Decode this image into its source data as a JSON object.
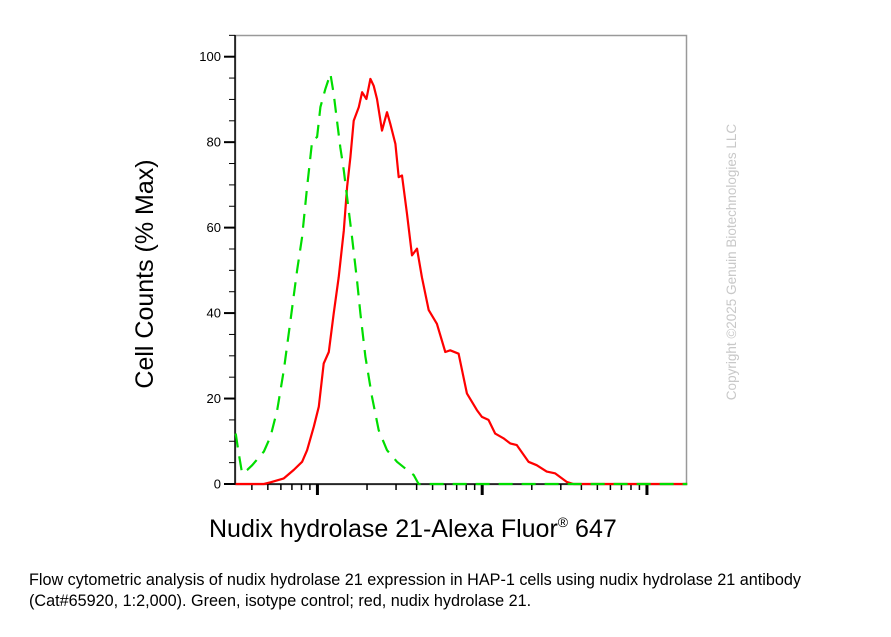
{
  "chart_data": {
    "type": "line",
    "title": "",
    "xlabel_parts": {
      "main": "Nudix hydrolase 21-Alexa Fluor",
      "sup": "®",
      "tail": " 647"
    },
    "ylabel": "Cell Counts (% Max)",
    "x_scale": "log",
    "xlim": [
      316,
      175000
    ],
    "x_major_ticks": [
      1000,
      10000,
      100000
    ],
    "ylim": [
      0,
      105
    ],
    "y_ticks": [
      0,
      20,
      40,
      60,
      80,
      100
    ],
    "y_tick_labels": [
      "0",
      "20",
      "40",
      "60",
      "80",
      "100"
    ],
    "grid": false,
    "legend": "none",
    "series": [
      {
        "color": "#ff0000",
        "style": "solid",
        "x": [
          319,
          473,
          519,
          625,
          719,
          807,
          866,
          950,
          1019,
          1092,
          1172,
          1256,
          1346,
          1445,
          1513,
          1585,
          1660,
          1782,
          1866,
          1982,
          2095,
          2194,
          2300,
          2466,
          2644,
          2769,
          2972,
          3112,
          3259,
          3494,
          3749,
          4018,
          4306,
          4732,
          5309,
          5970,
          6397,
          7194,
          8076,
          9290,
          9954,
          10920,
          11990,
          13460,
          14780,
          16220,
          19090,
          21430,
          24640,
          27670,
          32570,
          35780,
          175400
        ],
        "y": [
          0,
          0,
          0.4,
          1.3,
          3.3,
          5.2,
          7.9,
          13.4,
          18.1,
          28.2,
          30.9,
          39.9,
          48.4,
          59.3,
          69.5,
          76.5,
          85.0,
          88.2,
          91.7,
          90.1,
          94.8,
          93.2,
          90.1,
          82.7,
          87.0,
          84.3,
          79.6,
          71.8,
          72.2,
          63.2,
          53.5,
          55.1,
          48.4,
          40.7,
          37.5,
          30.9,
          31.3,
          30.5,
          21.2,
          17.3,
          15.7,
          15.0,
          11.8,
          10.7,
          9.5,
          9.1,
          5.2,
          4.4,
          2.9,
          2.5,
          0.5,
          0,
          0
        ]
      },
      {
        "color": "#00dd00",
        "style": "dashed",
        "x": [
          319,
          333,
          349,
          375,
          402,
          473,
          519,
          570,
          625,
          686,
          753,
          807,
          866,
          929,
          995,
          1042,
          1117,
          1199,
          1256,
          1315,
          1377,
          1445,
          1513,
          1622,
          1739,
          1822,
          1954,
          2143,
          2353,
          2644,
          3041,
          3494,
          3837,
          4111,
          175400
        ],
        "y": [
          11.8,
          7.2,
          2.5,
          3.3,
          4.4,
          7.6,
          11.1,
          17.3,
          26.6,
          38.3,
          50.0,
          57.8,
          69.5,
          80.4,
          81.2,
          88.2,
          92.4,
          96.0,
          91.3,
          85.0,
          78.8,
          73.4,
          67.1,
          57.8,
          47.7,
          39.9,
          29.8,
          20.4,
          12.6,
          7.9,
          5.2,
          3.3,
          2.1,
          0,
          0
        ]
      }
    ]
  },
  "watermark": "Copyright ©2025 Genuin Biotechnologies LLC",
  "caption": "Flow cytometric analysis of nudix hydrolase 21 expression in HAP-1 cells using nudix hydrolase 21 antibody (Cat#65920, 1:2,000). Green, isotype control; red, nudix hydrolase 21."
}
